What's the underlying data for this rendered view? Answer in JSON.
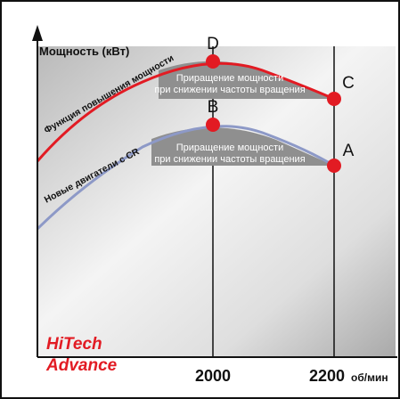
{
  "chart_data": {
    "type": "line",
    "ylabel": "Мощность (кВт)",
    "xunit": "об/мин",
    "x_ticks": [
      "2000",
      "2200"
    ],
    "series": [
      {
        "name": "Функция повышения мощности",
        "color": "#e21b23",
        "shading_label_lines": [
          "Приращение мощности",
          "при снижении частоты вращения"
        ]
      },
      {
        "name": "Новые двигатели с CR",
        "color": "#8d99c7",
        "shading_label_lines": [
          "Приращение мощности",
          "при снижении частоты вращения"
        ]
      }
    ],
    "points": [
      {
        "label": "D",
        "rpm": 2000,
        "series": 0
      },
      {
        "label": "C",
        "rpm": 2200,
        "series": 0
      },
      {
        "label": "B",
        "rpm": 2000,
        "series": 1
      },
      {
        "label": "A",
        "rpm": 2200,
        "series": 1
      }
    ],
    "point_color": "#e21b23"
  },
  "brand": {
    "line1": "HiTech",
    "line2": "Advance",
    "color": "#e21b23"
  }
}
